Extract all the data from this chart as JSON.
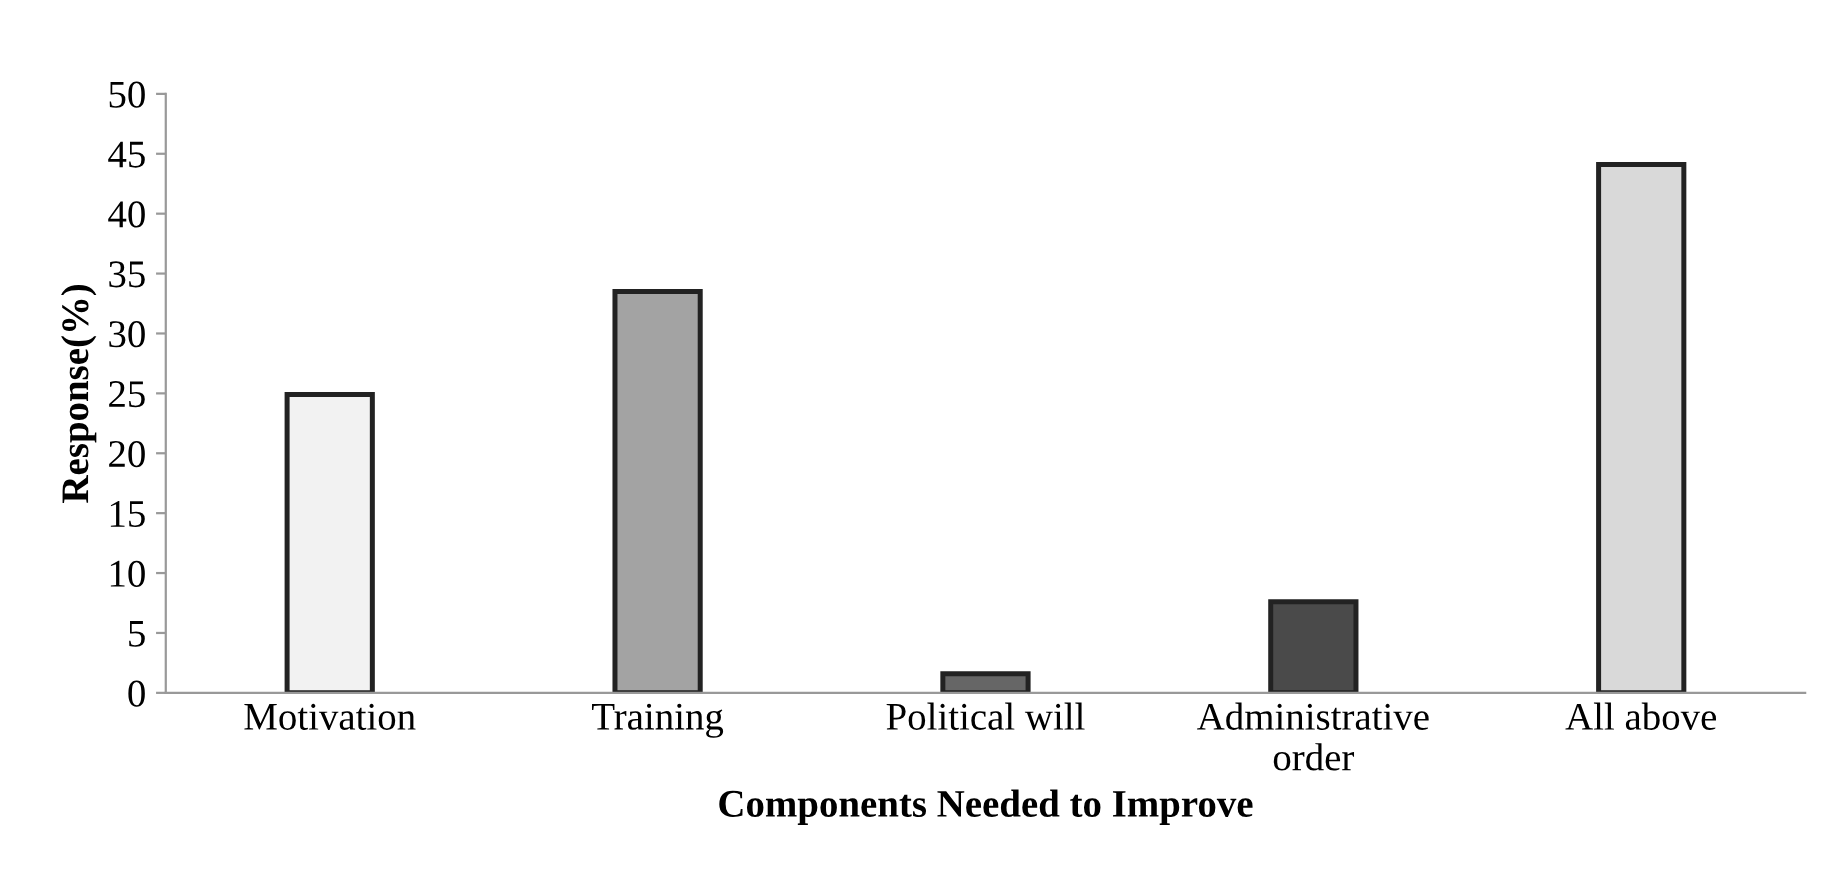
{
  "chart_data": {
    "type": "bar",
    "xlabel": "Components Needed to Improve",
    "ylabel": "Response(%)",
    "categories": [
      "Motivation",
      "Training",
      "Political will",
      "Administrative\norder",
      "All above"
    ],
    "values": [
      24.9,
      33.5,
      1.6,
      7.6,
      44.1
    ],
    "colors": [
      "#f2f2f2",
      "#a3a3a3",
      "#666666",
      "#4a4a4a",
      "#d9d9d9"
    ],
    "ylim": [
      0,
      50
    ],
    "yticks": [
      0,
      5,
      10,
      15,
      20,
      25,
      30,
      35,
      40,
      45,
      50
    ],
    "grid": false
  }
}
